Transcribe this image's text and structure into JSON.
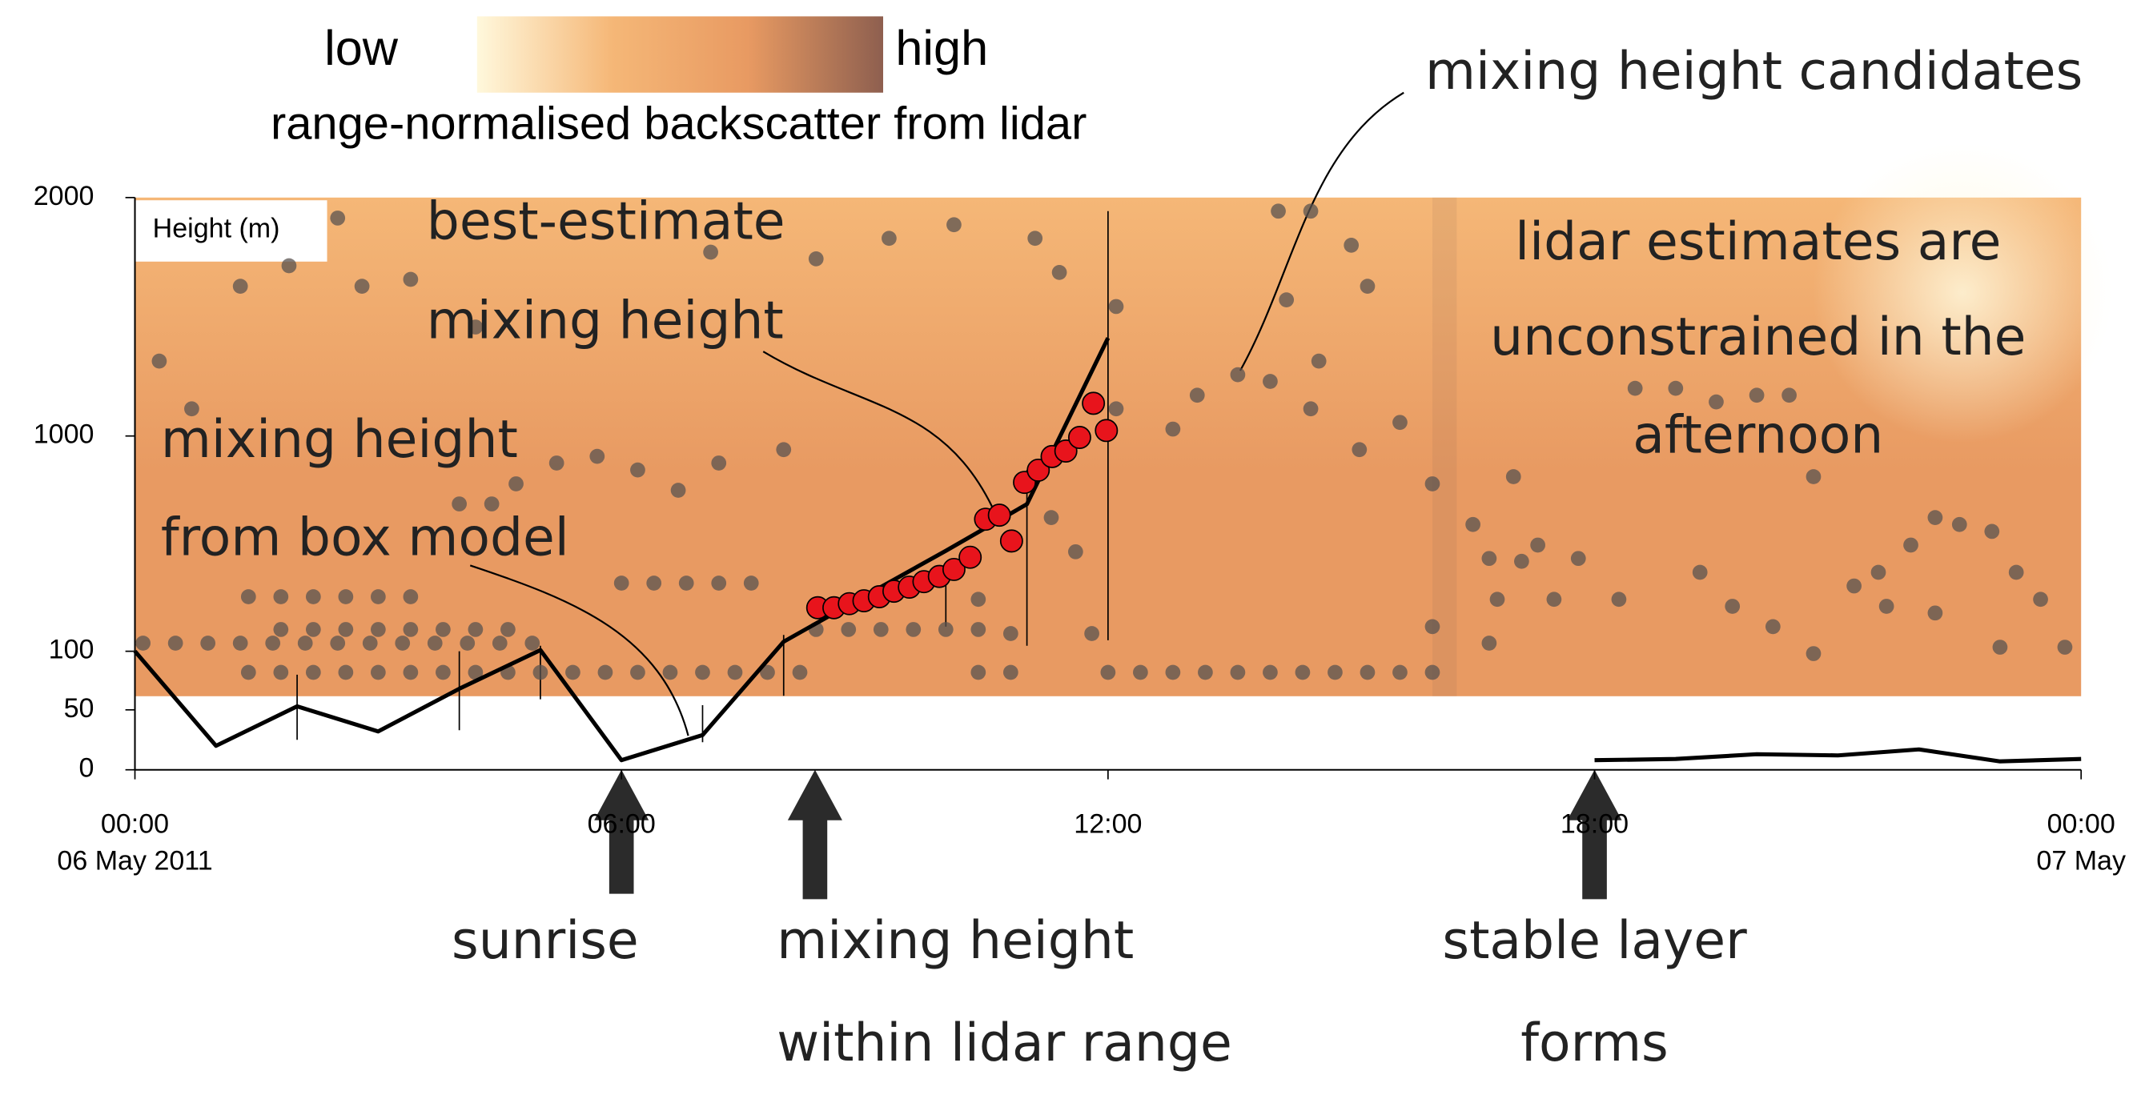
{
  "chart_data": {
    "type": "line",
    "y_axis_label": "Height (m)",
    "xlim": [
      0,
      24
    ],
    "xticks": [
      {
        "value": 0,
        "label": "00:00"
      },
      {
        "value": 6,
        "label": "06:00"
      },
      {
        "value": 12,
        "label": "12:00"
      },
      {
        "value": 18,
        "label": "18:00"
      },
      {
        "value": 24,
        "label": "00:00"
      }
    ],
    "x_date_labels": [
      {
        "value": 0,
        "label": "06 May 2011"
      },
      {
        "value": 24,
        "label": "07 May"
      }
    ],
    "ylim": [
      0,
      2000
    ],
    "yticks": [
      0,
      50,
      100,
      1000,
      2000
    ],
    "colorbar": {
      "low_label": "low",
      "high_label": "high",
      "label": "range-normalised backscatter from lidar",
      "colors": [
        "#fff8dc",
        "#f5b777",
        "#e89a62",
        "#8e5f4f"
      ]
    },
    "series": [
      {
        "type": "line",
        "color": "#000000",
        "x": [
          0,
          1,
          2,
          3,
          4,
          5,
          6,
          7,
          8,
          9,
          10,
          11,
          12,
          15,
          18,
          19,
          20,
          21,
          22,
          23,
          24
        ],
        "values": [
          100,
          20,
          53,
          32,
          68,
          105,
          8,
          29,
          140,
          331,
          520,
          715,
          1411,
          null,
          8,
          9,
          13,
          12,
          17,
          7,
          9
        ]
      },
      {
        "type": "scatter",
        "color": "#e8141c",
        "x": [
          8.42,
          8.62,
          8.81,
          8.99,
          9.18,
          9.36,
          9.55,
          9.73,
          9.92,
          10.1,
          10.3,
          10.49,
          10.66,
          10.81,
          10.97,
          11.14,
          11.31,
          11.48,
          11.65,
          11.82,
          11.98
        ],
        "values": [
          282,
          282,
          299,
          311,
          328,
          351,
          368,
          391,
          413,
          442,
          493,
          652,
          669,
          561,
          806,
          857,
          914,
          937,
          994,
          1137,
          1023
        ]
      },
      {
        "type": "scatter",
        "color": "#5a5350",
        "x": [
          1.4,
          1.8,
          2.2,
          2.6,
          3.0,
          3.4,
          3.8,
          4.2,
          4.6,
          5.0,
          5.4,
          5.8,
          6.2,
          6.6,
          7.0,
          7.4,
          7.8,
          8.2,
          0.1,
          0.5,
          0.9,
          1.3,
          1.7,
          2.1,
          2.5,
          2.9,
          3.3,
          3.7,
          4.1,
          4.5,
          4.9,
          1.8,
          2.2,
          2.6,
          3.0,
          3.4,
          3.8,
          4.2,
          4.6,
          8.4,
          8.8,
          9.2,
          9.6,
          10.0,
          10.4,
          1.4,
          1.8,
          2.2,
          2.6,
          3.0,
          3.4,
          6.0,
          6.4,
          6.8,
          7.2,
          7.6,
          10.4,
          10.8,
          12.0,
          12.4,
          12.8,
          13.2,
          13.6,
          14.0,
          14.4,
          14.8,
          15.2,
          15.6,
          16.0,
          16.0,
          16.5,
          17.0,
          16.7,
          17.1,
          17.3,
          17.8,
          18.3,
          17.5,
          16.8,
          18.5,
          19.0,
          19.5,
          20.0,
          20.4,
          20.7,
          21.2,
          21.5,
          21.9,
          22.2,
          22.5,
          22.9,
          23.2,
          23.5,
          23.8,
          20.7,
          20.2,
          19.7,
          23.0,
          16.7,
          16.0,
          22.2,
          21.6,
          19.3,
          12.1,
          12.8,
          13.1,
          13.6,
          14.0,
          14.5,
          15.1,
          15.6,
          14.6,
          15.0,
          14.1,
          14.5,
          14.2,
          15.2,
          11.3,
          11.6,
          11.8,
          10.4,
          10.8,
          0.3,
          0.7,
          1.3,
          1.9,
          2.8,
          3.4,
          2.5,
          4.2,
          4.7,
          5.2,
          5.7,
          4.4,
          4.0,
          6.2,
          6.7,
          7.2,
          8.0,
          7.1,
          8.4,
          9.3,
          10.1,
          11.1,
          11.4,
          12.1
        ],
        "values": [
          82,
          82,
          82,
          82,
          82,
          82,
          82,
          82,
          82,
          82,
          82,
          82,
          82,
          82,
          82,
          82,
          82,
          82,
          134,
          134,
          134,
          134,
          134,
          134,
          134,
          134,
          134,
          134,
          134,
          134,
          134,
          191,
          191,
          191,
          191,
          191,
          191,
          191,
          191,
          191,
          191,
          191,
          191,
          191,
          191,
          328,
          328,
          328,
          328,
          328,
          328,
          385,
          385,
          385,
          385,
          385,
          82,
          82,
          82,
          82,
          82,
          82,
          82,
          82,
          82,
          82,
          82,
          82,
          82,
          800,
          630,
          830,
          488,
          476,
          544,
          488,
          317,
          317,
          317,
          1200,
          1200,
          1143,
          1171,
          1171,
          830,
          373,
          430,
          544,
          659,
          630,
          601,
          430,
          317,
          117,
          98,
          203,
          288,
          117,
          134,
          203,
          260,
          288,
          430,
          1114,
          1029,
          1171,
          1257,
          1229,
          1114,
          943,
          1057,
          1314,
          1800,
          1943,
          1943,
          1571,
          1628,
          659,
          516,
          174,
          317,
          174,
          1314,
          1114,
          1628,
          1714,
          1628,
          1657,
          1914,
          1457,
          800,
          887,
          915,
          716,
          716,
          858,
          773,
          887,
          943,
          1771,
          1743,
          1829,
          1886,
          1829,
          1686,
          1543
        ]
      }
    ],
    "error_bars": {
      "x": [
        2,
        4,
        5,
        7,
        8,
        10,
        11,
        12
      ],
      "low": [
        25,
        33,
        59,
        23,
        62,
        203,
        123,
        146
      ],
      "high": [
        80,
        100,
        123,
        54,
        168,
        442,
        858,
        1943
      ]
    },
    "annotations": [
      {
        "lines": [
          "mixing height candidates"
        ]
      },
      {
        "lines": [
          "best-estimate",
          "mixing height"
        ]
      },
      {
        "lines": [
          "lidar estimates are",
          "unconstrained in the",
          "afternoon"
        ]
      },
      {
        "lines": [
          "mixing height",
          "from box model"
        ]
      },
      {
        "lines": [
          "sunrise"
        ]
      },
      {
        "lines": [
          "mixing height",
          "within lidar range"
        ]
      },
      {
        "lines": [
          "stable layer",
          "forms"
        ]
      }
    ]
  }
}
